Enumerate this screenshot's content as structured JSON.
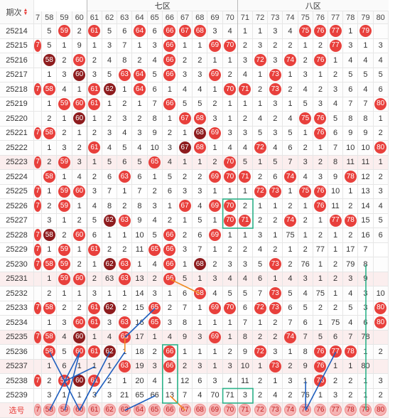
{
  "header": {
    "period_label": "期次",
    "zones": [
      {
        "name": "七区",
        "start_col": 4,
        "end_col": 13
      },
      {
        "name": "八区",
        "start_col": 14,
        "end_col": 23
      }
    ],
    "columns": [
      "7",
      "58",
      "59",
      "60",
      "61",
      "62",
      "63",
      "64",
      "65",
      "66",
      "67",
      "68",
      "69",
      "70",
      "71",
      "72",
      "73",
      "74",
      "75",
      "76",
      "77",
      "78",
      "79",
      "80"
    ]
  },
  "rows": [
    {
      "p": "25214",
      "c": [
        "",
        "5",
        "59",
        "2",
        "61",
        "5",
        "6",
        "64",
        "6",
        "66",
        "67",
        "68",
        "3",
        "4",
        "1",
        "1",
        "3",
        "4",
        "75",
        "76",
        "77",
        "1",
        "79",
        ""
      ]
    },
    {
      "p": "25215",
      "c": [
        "7",
        "5",
        "1",
        "9",
        "1",
        "3",
        "7",
        "1",
        "3",
        "66",
        "1",
        "1",
        "69",
        "70",
        "2",
        "3",
        "2",
        "2",
        "1",
        "2",
        "77",
        "3",
        "1",
        "3"
      ]
    },
    {
      "p": "25216",
      "c": [
        "",
        "58",
        "2",
        "60",
        "2",
        "4",
        "8",
        "2",
        "4",
        "66",
        "2",
        "2",
        "1",
        "1",
        "3",
        "72",
        "3",
        "74",
        "2",
        "76",
        "1",
        "4",
        "4",
        "4"
      ]
    },
    {
      "p": "25217",
      "c": [
        "",
        "1",
        "3",
        "60",
        "3",
        "5",
        "63",
        "64",
        "5",
        "66",
        "3",
        "3",
        "69",
        "2",
        "4",
        "1",
        "73",
        "1",
        "3",
        "1",
        "2",
        "5",
        "5",
        "5"
      ]
    },
    {
      "p": "25218",
      "c": [
        "7",
        "58",
        "4",
        "1",
        "61",
        "62",
        "1",
        "64",
        "6",
        "1",
        "4",
        "4",
        "1",
        "70",
        "71",
        "2",
        "73",
        "2",
        "4",
        "2",
        "3",
        "6",
        "4",
        "6"
      ]
    },
    {
      "p": "25219",
      "c": [
        "",
        "1",
        "59",
        "60",
        "61",
        "1",
        "2",
        "1",
        "7",
        "66",
        "5",
        "5",
        "2",
        "1",
        "1",
        "1",
        "3",
        "1",
        "5",
        "3",
        "4",
        "7",
        "7",
        "80"
      ]
    },
    {
      "p": "25220",
      "c": [
        "",
        "2",
        "1",
        "60",
        "1",
        "2",
        "3",
        "2",
        "8",
        "1",
        "67",
        "68",
        "3",
        "1",
        "2",
        "4",
        "2",
        "4",
        "75",
        "76",
        "5",
        "8",
        "8",
        "1"
      ]
    },
    {
      "p": "25221",
      "c": [
        "7",
        "58",
        "2",
        "1",
        "2",
        "3",
        "4",
        "3",
        "9",
        "2",
        "1",
        "68",
        "69",
        "3",
        "3",
        "5",
        "3",
        "5",
        "1",
        "76",
        "6",
        "9",
        "9",
        "2"
      ]
    },
    {
      "p": "25222",
      "c": [
        "",
        "1",
        "3",
        "2",
        "61",
        "4",
        "5",
        "4",
        "10",
        "3",
        "67",
        "68",
        "1",
        "4",
        "4",
        "72",
        "4",
        "6",
        "2",
        "1",
        "7",
        "10",
        "10",
        "80"
      ]
    },
    {
      "p": "25223",
      "c": [
        "7",
        "2",
        "59",
        "3",
        "1",
        "5",
        "6",
        "5",
        "65",
        "4",
        "1",
        "1",
        "2",
        "70",
        "5",
        "1",
        "5",
        "7",
        "3",
        "2",
        "8",
        "11",
        "11",
        "1"
      ]
    },
    {
      "p": "25224",
      "c": [
        "",
        "58",
        "1",
        "4",
        "2",
        "6",
        "63",
        "6",
        "1",
        "5",
        "2",
        "2",
        "69",
        "70",
        "71",
        "2",
        "6",
        "74",
        "4",
        "3",
        "9",
        "78",
        "12",
        "2"
      ]
    },
    {
      "p": "25225",
      "c": [
        "7",
        "1",
        "59",
        "60",
        "3",
        "7",
        "1",
        "7",
        "2",
        "6",
        "3",
        "3",
        "1",
        "1",
        "1",
        "72",
        "73",
        "1",
        "75",
        "76",
        "10",
        "1",
        "13",
        "3"
      ]
    },
    {
      "p": "25226",
      "c": [
        "7",
        "2",
        "59",
        "1",
        "4",
        "8",
        "2",
        "8",
        "3",
        "1",
        "67",
        "4",
        "69",
        "70",
        "2",
        "1",
        "1",
        "2",
        "1",
        "76",
        "11",
        "2",
        "14",
        "4"
      ]
    },
    {
      "p": "25227",
      "c": [
        "",
        "3",
        "1",
        "2",
        "5",
        "62",
        "63",
        "9",
        "4",
        "2",
        "1",
        "5",
        "1",
        "70",
        "71",
        "2",
        "2",
        "74",
        "2",
        "1",
        "77",
        "78",
        "15",
        "5"
      ]
    },
    {
      "p": "25228",
      "c": [
        "7",
        "58",
        "2",
        "60",
        "6",
        "1",
        "1",
        "10",
        "5",
        "66",
        "2",
        "6",
        "69",
        "1",
        "1",
        "3",
        "1",
        "75",
        "1",
        "2",
        "1",
        "2",
        "16",
        "6"
      ]
    },
    {
      "p": "25229",
      "c": [
        "7",
        "1",
        "59",
        "1",
        "61",
        "2",
        "2",
        "11",
        "65",
        "66",
        "3",
        "7",
        "1",
        "2",
        "2",
        "4",
        "2",
        "1",
        "2",
        "77",
        "1",
        "17",
        "7",
        ""
      ]
    },
    {
      "p": "25230",
      "c": [
        "7",
        "58",
        "59",
        "2",
        "1",
        "62",
        "63",
        "1",
        "4",
        "66",
        "1",
        "68",
        "2",
        "3",
        "3",
        "5",
        "73",
        "2",
        "76",
        "1",
        "2",
        "79",
        "8",
        ""
      ]
    },
    {
      "p": "25231",
      "c": [
        "",
        "1",
        "59",
        "60",
        "2",
        "63",
        "63",
        "13",
        "2",
        "66",
        "5",
        "1",
        "3",
        "4",
        "4",
        "6",
        "1",
        "4",
        "3",
        "1",
        "2",
        "3",
        "9",
        ""
      ]
    },
    {
      "p": "25232",
      "c": [
        "",
        "2",
        "1",
        "1",
        "3",
        "1",
        "1",
        "14",
        "3",
        "1",
        "6",
        "68",
        "4",
        "5",
        "5",
        "7",
        "73",
        "5",
        "4",
        "75",
        "1",
        "4",
        "3",
        "10"
      ]
    },
    {
      "p": "25233",
      "c": [
        "7",
        "58",
        "2",
        "2",
        "61",
        "62",
        "2",
        "15",
        "65",
        "2",
        "7",
        "1",
        "69",
        "70",
        "6",
        "72",
        "73",
        "6",
        "5",
        "2",
        "2",
        "5",
        "3",
        "80"
      ]
    },
    {
      "p": "25234",
      "c": [
        "",
        "1",
        "3",
        "60",
        "61",
        "3",
        "63",
        "16",
        "65",
        "3",
        "8",
        "1",
        "1",
        "1",
        "7",
        "1",
        "2",
        "7",
        "6",
        "1",
        "75",
        "4",
        "6",
        "80"
      ]
    },
    {
      "p": "25235",
      "c": [
        "7",
        "58",
        "4",
        "60",
        "1",
        "4",
        "63",
        "17",
        "1",
        "4",
        "9",
        "3",
        "69",
        "1",
        "8",
        "2",
        "2",
        "74",
        "7",
        "5",
        "6",
        "7",
        "78",
        ""
      ]
    },
    {
      "p": "25236",
      "c": [
        "",
        "58",
        "5",
        "60",
        "61",
        "62",
        "1",
        "18",
        "2",
        "66",
        "1",
        "1",
        "1",
        "2",
        "9",
        "72",
        "3",
        "1",
        "8",
        "76",
        "77",
        "78",
        "1",
        "2"
      ]
    },
    {
      "p": "25237",
      "c": [
        "",
        "1",
        "6",
        "1",
        "1",
        "1",
        "63",
        "19",
        "3",
        "66",
        "2",
        "3",
        "1",
        "3",
        "10",
        "1",
        "73",
        "2",
        "9",
        "76",
        "1",
        "1",
        "80",
        ""
      ]
    },
    {
      "p": "25238",
      "c": [
        "7",
        "2",
        "59",
        "60",
        "61",
        "2",
        "1",
        "20",
        "4",
        "1",
        "12",
        "6",
        "3",
        "4",
        "11",
        "2",
        "1",
        "3",
        "1",
        "76",
        "2",
        "2",
        "1",
        "3"
      ]
    },
    {
      "p": "25239",
      "c": [
        "",
        "3",
        "1",
        "1",
        "3",
        "3",
        "21",
        "65",
        "66",
        "13",
        "7",
        "4",
        "70",
        "71",
        "3",
        "2",
        "4",
        "2",
        "76",
        "1",
        "3",
        "2",
        "1",
        "2"
      ]
    },
    {
      "p": "选号",
      "c": [
        "7",
        "58",
        "59",
        "60",
        "61",
        "62",
        "63",
        "64",
        "65",
        "66",
        "67",
        "68",
        "69",
        "70",
        "71",
        "72",
        "73",
        "74",
        "75",
        "76",
        "77",
        "78",
        "79",
        "80"
      ]
    }
  ],
  "hot_rows": [
    "25223",
    "25231",
    "25235",
    "25237",
    "选号"
  ],
  "legend": {
    "select_label": "选号"
  },
  "colors": {
    "ball_red": "#e8403c",
    "ball_dark": "#8e1c1e",
    "line_orange": "#f08a24",
    "line_blue": "#1f5fbf",
    "box_green": "#2db38a"
  }
}
